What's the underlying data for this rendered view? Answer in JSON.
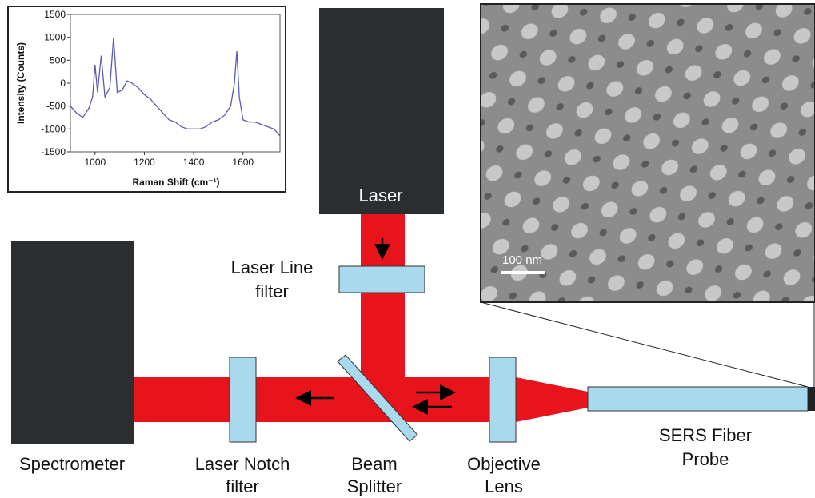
{
  "chart_data": {
    "type": "line",
    "x_label": "Raman Shift (cm⁻¹)",
    "y_label": "Intensity (Counts)",
    "x": [
      900,
      925,
      950,
      975,
      990,
      1000,
      1010,
      1025,
      1040,
      1060,
      1075,
      1090,
      1110,
      1130,
      1150,
      1175,
      1200,
      1225,
      1250,
      1275,
      1300,
      1325,
      1350,
      1375,
      1400,
      1425,
      1450,
      1475,
      1500,
      1525,
      1550,
      1565,
      1575,
      1585,
      1600,
      1625,
      1650,
      1675,
      1700,
      1725,
      1750
    ],
    "series": [
      {
        "color": "#5a5ab4",
        "values": [
          -500,
          -650,
          -750,
          -550,
          -300,
          400,
          -200,
          600,
          -300,
          -100,
          1000,
          -200,
          -150,
          50,
          0,
          -100,
          -250,
          -350,
          -500,
          -650,
          -800,
          -850,
          -950,
          -1000,
          -1000,
          -1000,
          -950,
          -850,
          -800,
          -700,
          -500,
          0,
          700,
          -300,
          -800,
          -850,
          -850,
          -900,
          -950,
          -1000,
          -1150
        ]
      }
    ],
    "xlim": [
      900,
      1750
    ],
    "xticks": [
      1000,
      1200,
      1400,
      1600
    ],
    "ylim": [
      -1500,
      1500
    ],
    "yticks": [
      -1500,
      -1000,
      -500,
      0,
      500,
      1000,
      1500
    ]
  },
  "labels": {
    "laser": "Laser",
    "laser_line_filter": [
      "Laser Line",
      "filter"
    ],
    "spectrometer": "Spectrometer",
    "laser_notch_filter": [
      "Laser Notch",
      "filter"
    ],
    "beam_splitter": [
      "Beam",
      "Splitter"
    ],
    "objective_lens": [
      "Objective",
      "Lens"
    ],
    "sers_fiber_probe": [
      "SERS Fiber",
      "Probe"
    ],
    "scale_bar": "100 nm"
  }
}
